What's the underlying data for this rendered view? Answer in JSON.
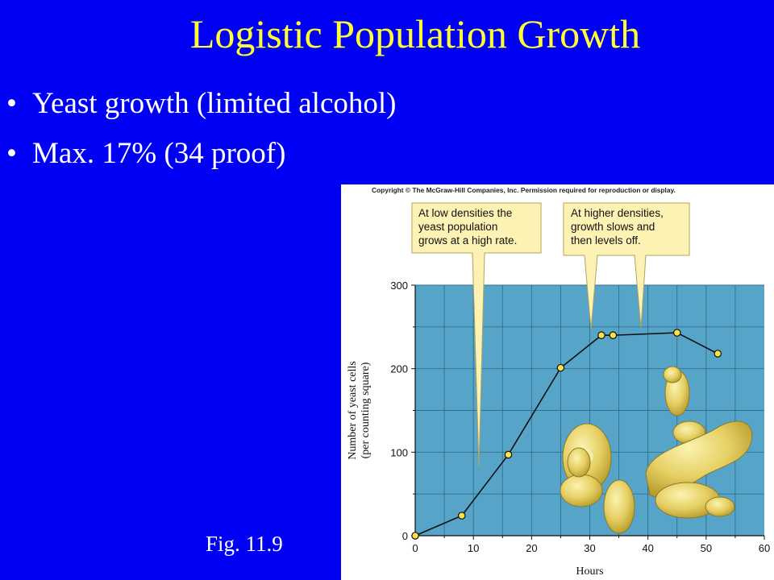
{
  "slide": {
    "title": "Logistic Population Growth",
    "bullets": [
      "Yeast growth (limited alcohol)",
      "Max. 17% (34 proof)"
    ],
    "caption": "Fig. 11.9",
    "bullet_glyph": "•"
  },
  "figure": {
    "copyright": "Copyright © The McGraw-Hill Companies, Inc. Permission required for reproduction or display.",
    "callouts": [
      {
        "lines": [
          "At low densities the",
          "yeast population",
          "grows at a high rate."
        ]
      },
      {
        "lines": [
          "At higher densities,",
          "growth slows and",
          "then levels off."
        ]
      }
    ]
  },
  "chart_data": {
    "type": "line",
    "title": "",
    "xlabel": "Hours",
    "ylabel": "Number of yeast cells",
    "ylabel_sub": "(per counting square)",
    "x_ticks": [
      0,
      10,
      20,
      30,
      40,
      50,
      60
    ],
    "y_ticks": [
      0,
      100,
      200,
      300
    ],
    "xlim": [
      0,
      60
    ],
    "ylim": [
      0,
      300
    ],
    "grid": true,
    "plot_color": "#56a4c8",
    "point_color": "#ffe14a",
    "series": [
      {
        "x": [
          0,
          8,
          16,
          25,
          32,
          34,
          45,
          52
        ],
        "y": [
          0,
          24,
          97,
          201,
          240,
          240,
          243,
          218
        ]
      }
    ]
  }
}
